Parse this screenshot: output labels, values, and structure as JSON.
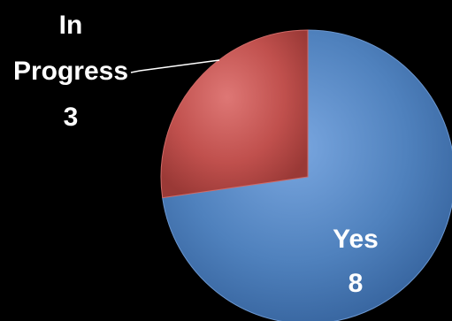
{
  "chart_data": {
    "type": "pie",
    "categories": [
      "Yes",
      "In Progress"
    ],
    "values": [
      8,
      3
    ],
    "colors": {
      "Yes": "#4f81bd",
      "In Progress": "#c0504d",
      "label_yes": "#ffffff",
      "label_in_progress": "#ffffff",
      "background": "#000000"
    },
    "labels": [
      {
        "category_lines": [
          "Yes"
        ],
        "value": "8"
      },
      {
        "category_lines": [
          "In",
          "Progress"
        ],
        "value": "3"
      }
    ]
  }
}
